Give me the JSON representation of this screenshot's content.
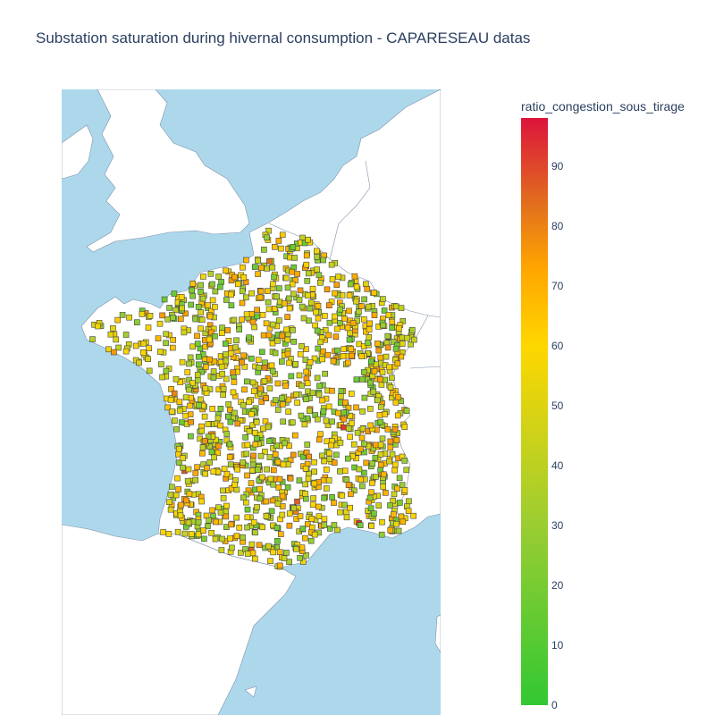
{
  "title": "Substation saturation during hivernal consumption - CAPARESEAU datas",
  "colorbar": {
    "title": "ratio_congestion_sous_tirage",
    "min": 0,
    "max": 98,
    "ticks": [
      "0",
      "10",
      "20",
      "30",
      "40",
      "50",
      "60",
      "70",
      "80",
      "90"
    ],
    "colorscale": [
      "#32c832",
      "#9acd32",
      "#ffd700",
      "#ffa500",
      "#e2711d",
      "#dc143c"
    ]
  },
  "map": {
    "region": "France",
    "marker_shape": "square",
    "land_color": "#ffffff",
    "water_color": "#add8ec",
    "border_color": "#7f92a8",
    "marker_outline": "#444444"
  }
}
